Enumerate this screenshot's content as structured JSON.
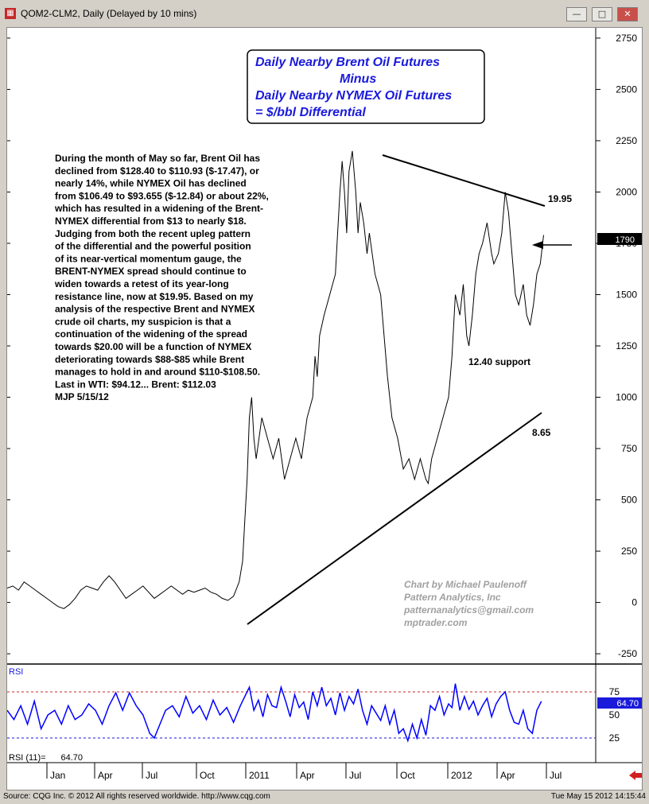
{
  "window": {
    "title": "QOM2-CLM2, Daily (Delayed by 10 mins)",
    "minimize": "—",
    "restore": "□",
    "close": "✕"
  },
  "footer": {
    "source": "Source: CQG Inc. © 2012 All rights reserved worldwide. http://www.cqg.com",
    "timestamp": "Tue May 15 2012 14:15:44"
  },
  "chart_data": [
    {
      "type": "line",
      "title": "Daily Nearby Brent Oil Futures\nMinus\nDaily Nearby NYMEX Oil Futures\n= $/bbl Differential",
      "ylim": [
        -300,
        2800
      ],
      "yticks": [
        -250,
        0,
        250,
        500,
        750,
        1000,
        1250,
        1500,
        1750,
        2000,
        2250,
        2500,
        2750
      ],
      "last_value": "1790",
      "x_ticks": [
        "Jan",
        "Apr",
        "Jul",
        "Oct",
        "2011",
        "Apr",
        "Jul",
        "Oct",
        "2012",
        "Apr",
        "Jul"
      ],
      "series": [
        {
          "values": [
            [
              0,
              70
            ],
            [
              5,
              80
            ],
            [
              10,
              60
            ],
            [
              15,
              100
            ],
            [
              20,
              80
            ],
            [
              25,
              60
            ],
            [
              30,
              40
            ],
            [
              35,
              20
            ],
            [
              40,
              0
            ],
            [
              45,
              -20
            ],
            [
              50,
              -30
            ],
            [
              55,
              -10
            ],
            [
              60,
              20
            ],
            [
              65,
              60
            ],
            [
              70,
              80
            ],
            [
              75,
              70
            ],
            [
              80,
              60
            ],
            [
              85,
              100
            ],
            [
              90,
              130
            ],
            [
              95,
              100
            ],
            [
              100,
              60
            ],
            [
              105,
              20
            ],
            [
              110,
              40
            ],
            [
              115,
              60
            ],
            [
              120,
              80
            ],
            [
              125,
              50
            ],
            [
              130,
              20
            ],
            [
              135,
              40
            ],
            [
              140,
              60
            ],
            [
              145,
              80
            ],
            [
              150,
              60
            ],
            [
              155,
              40
            ],
            [
              160,
              60
            ],
            [
              165,
              50
            ],
            [
              170,
              60
            ],
            [
              175,
              70
            ],
            [
              180,
              50
            ],
            [
              185,
              40
            ],
            [
              190,
              20
            ],
            [
              195,
              10
            ],
            [
              200,
              30
            ],
            [
              205,
              100
            ],
            [
              208,
              200
            ],
            [
              210,
              400
            ],
            [
              212,
              600
            ],
            [
              214,
              900
            ],
            [
              216,
              1000
            ],
            [
              218,
              800
            ],
            [
              220,
              700
            ],
            [
              225,
              900
            ],
            [
              230,
              800
            ],
            [
              235,
              700
            ],
            [
              240,
              800
            ],
            [
              245,
              600
            ],
            [
              250,
              700
            ],
            [
              255,
              800
            ],
            [
              260,
              700
            ],
            [
              265,
              900
            ],
            [
              270,
              1000
            ],
            [
              272,
              1200
            ],
            [
              274,
              1100
            ],
            [
              276,
              1300
            ],
            [
              280,
              1400
            ],
            [
              285,
              1500
            ],
            [
              290,
              1600
            ],
            [
              292,
              1800
            ],
            [
              294,
              2000
            ],
            [
              296,
              2150
            ],
            [
              298,
              2000
            ],
            [
              300,
              1800
            ],
            [
              302,
              2100
            ],
            [
              305,
              2200
            ],
            [
              308,
              2000
            ],
            [
              310,
              1800
            ],
            [
              312,
              1950
            ],
            [
              315,
              1850
            ],
            [
              318,
              1700
            ],
            [
              320,
              1800
            ],
            [
              325,
              1600
            ],
            [
              330,
              1500
            ],
            [
              333,
              1300
            ],
            [
              336,
              1100
            ],
            [
              340,
              900
            ],
            [
              345,
              800
            ],
            [
              350,
              650
            ],
            [
              355,
              700
            ],
            [
              360,
              600
            ],
            [
              365,
              700
            ],
            [
              370,
              600
            ],
            [
              372,
              580
            ],
            [
              375,
              700
            ],
            [
              380,
              800
            ],
            [
              385,
              900
            ],
            [
              390,
              1000
            ],
            [
              393,
              1200
            ],
            [
              396,
              1500
            ],
            [
              400,
              1400
            ],
            [
              403,
              1550
            ],
            [
              406,
              1300
            ],
            [
              408,
              1250
            ],
            [
              411,
              1400
            ],
            [
              414,
              1600
            ],
            [
              417,
              1700
            ],
            [
              420,
              1750
            ],
            [
              424,
              1850
            ],
            [
              428,
              1700
            ],
            [
              430,
              1650
            ],
            [
              434,
              1700
            ],
            [
              437,
              1800
            ],
            [
              440,
              2000
            ],
            [
              443,
              1900
            ],
            [
              446,
              1700
            ],
            [
              449,
              1500
            ],
            [
              452,
              1450
            ],
            [
              456,
              1550
            ],
            [
              459,
              1400
            ],
            [
              462,
              1350
            ],
            [
              465,
              1450
            ],
            [
              468,
              1600
            ],
            [
              471,
              1650
            ],
            [
              474,
              1790
            ]
          ]
        }
      ],
      "annotations": {
        "label_resistance": "19.95",
        "label_support_mid": "12.40 support",
        "label_support_low": "8.65",
        "commentary": [
          "During the month of May so far, Brent Oil has",
          "declined from $128.40 to $110.93 ($-17.47), or",
          "nearly 14%, while NYMEX Oil has declined",
          "from $106.49 to $93.655 ($-12.84) or about 22%,",
          "which has resulted in a widening of the Brent-",
          "NYMEX differential from $13 to nearly $18.",
          "Judging from both the recent upleg pattern",
          "of the differential and the powerful position",
          "of its near-vertical momentum gauge, the",
          "BRENT-NYMEX spread should continue to",
          "widen towards a retest of its year-long",
          "resistance line, now at $19.95. Based on my",
          "analysis of the respective Brent and NYMEX",
          "crude oil charts, my suspicion is that a",
          "continuation of the widening of the spread",
          "towards $20.00 will be a function of NYMEX",
          "deteriorating towards $88-$85 while Brent",
          "manages to hold in and around $110-$108.50.",
          "Last in WTI: $94.12... Brent: $112.03",
          "MJP  5/15/12"
        ],
        "credit": [
          "Chart by Michael Paulenoff",
          "Pattern Analytics, Inc",
          "patternanalytics@gmail.com",
          "mptrader.com"
        ]
      }
    },
    {
      "type": "line",
      "title": "RSI",
      "ylim": [
        0,
        100
      ],
      "yticks": [
        25,
        50,
        75
      ],
      "reference_lines": [
        75,
        25
      ],
      "legend": "RSI (11)=",
      "last_value": "64.70",
      "series": [
        {
          "name": "RSI (11)",
          "values": [
            [
              0,
              55
            ],
            [
              6,
              45
            ],
            [
              12,
              60
            ],
            [
              18,
              40
            ],
            [
              24,
              65
            ],
            [
              30,
              35
            ],
            [
              36,
              50
            ],
            [
              42,
              55
            ],
            [
              48,
              40
            ],
            [
              54,
              60
            ],
            [
              60,
              45
            ],
            [
              66,
              50
            ],
            [
              72,
              62
            ],
            [
              78,
              55
            ],
            [
              84,
              40
            ],
            [
              90,
              60
            ],
            [
              96,
              74
            ],
            [
              102,
              55
            ],
            [
              108,
              74
            ],
            [
              114,
              60
            ],
            [
              120,
              50
            ],
            [
              126,
              30
            ],
            [
              130,
              25
            ],
            [
              135,
              40
            ],
            [
              140,
              55
            ],
            [
              146,
              60
            ],
            [
              152,
              48
            ],
            [
              158,
              70
            ],
            [
              164,
              52
            ],
            [
              170,
              60
            ],
            [
              176,
              45
            ],
            [
              182,
              66
            ],
            [
              188,
              50
            ],
            [
              194,
              58
            ],
            [
              200,
              42
            ],
            [
              206,
              60
            ],
            [
              210,
              70
            ],
            [
              214,
              80
            ],
            [
              218,
              55
            ],
            [
              222,
              66
            ],
            [
              226,
              48
            ],
            [
              230,
              72
            ],
            [
              234,
              60
            ],
            [
              238,
              58
            ],
            [
              242,
              80
            ],
            [
              246,
              65
            ],
            [
              250,
              48
            ],
            [
              254,
              72
            ],
            [
              258,
              58
            ],
            [
              262,
              64
            ],
            [
              266,
              45
            ],
            [
              270,
              75
            ],
            [
              274,
              60
            ],
            [
              278,
              80
            ],
            [
              282,
              60
            ],
            [
              286,
              68
            ],
            [
              290,
              50
            ],
            [
              294,
              74
            ],
            [
              298,
              55
            ],
            [
              302,
              70
            ],
            [
              306,
              62
            ],
            [
              310,
              78
            ],
            [
              314,
              55
            ],
            [
              318,
              40
            ],
            [
              322,
              60
            ],
            [
              326,
              52
            ],
            [
              330,
              44
            ],
            [
              334,
              60
            ],
            [
              338,
              40
            ],
            [
              342,
              55
            ],
            [
              346,
              30
            ],
            [
              350,
              35
            ],
            [
              354,
              22
            ],
            [
              358,
              40
            ],
            [
              362,
              25
            ],
            [
              366,
              45
            ],
            [
              370,
              28
            ],
            [
              374,
              60
            ],
            [
              378,
              55
            ],
            [
              382,
              70
            ],
            [
              386,
              50
            ],
            [
              390,
              62
            ],
            [
              393,
              58
            ],
            [
              396,
              84
            ],
            [
              400,
              55
            ],
            [
              404,
              70
            ],
            [
              408,
              56
            ],
            [
              412,
              65
            ],
            [
              416,
              50
            ],
            [
              420,
              60
            ],
            [
              424,
              68
            ],
            [
              428,
              48
            ],
            [
              432,
              62
            ],
            [
              436,
              70
            ],
            [
              440,
              75
            ],
            [
              444,
              55
            ],
            [
              448,
              42
            ],
            [
              452,
              40
            ],
            [
              456,
              55
            ],
            [
              460,
              35
            ],
            [
              464,
              30
            ],
            [
              468,
              55
            ],
            [
              472,
              64.7
            ]
          ]
        }
      ]
    }
  ]
}
